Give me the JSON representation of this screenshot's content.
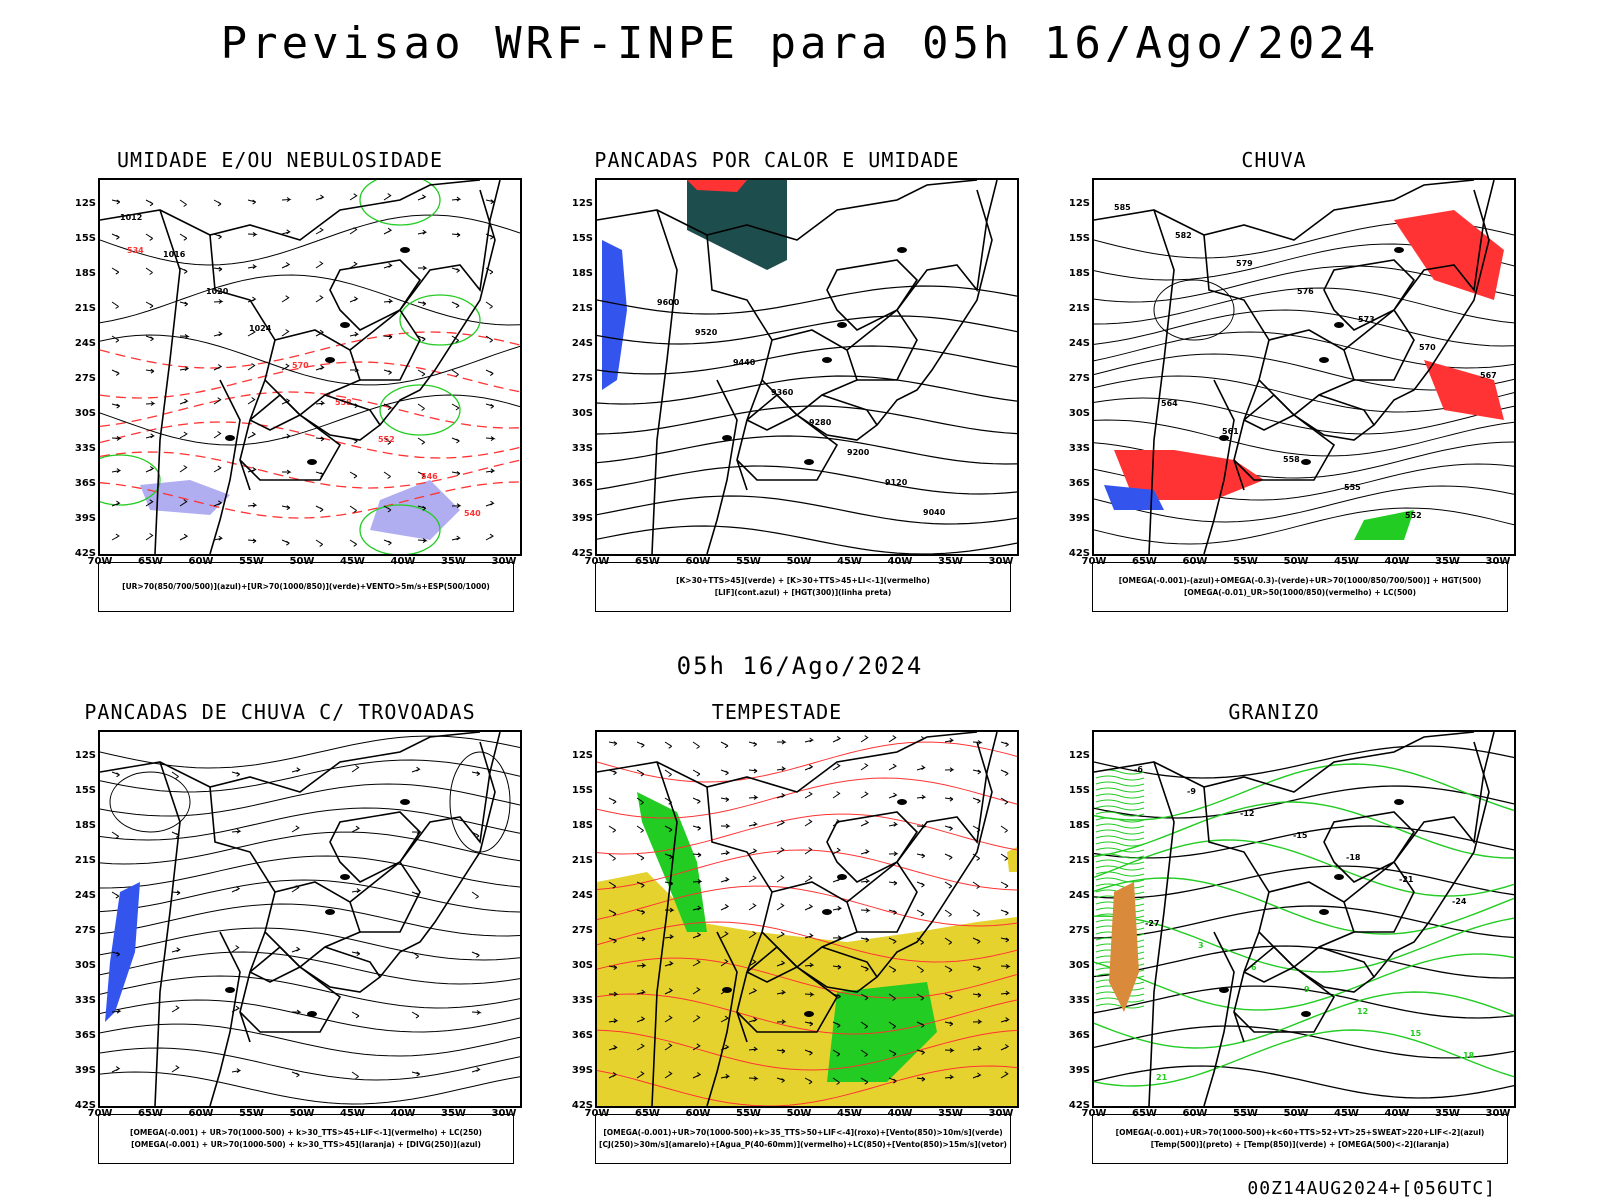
{
  "header": {
    "title": "Previsao WRF-INPE  para 05h 16/Ago/2024"
  },
  "mid_date": "05h 16/Ago/2024",
  "footer": "00Z14AUG2024+[056UTC]",
  "axes": {
    "lat_labels": [
      "12S",
      "15S",
      "18S",
      "21S",
      "24S",
      "27S",
      "30S",
      "33S",
      "36S",
      "39S",
      "42S"
    ],
    "lon_labels": [
      "70W",
      "65W",
      "60W",
      "55W",
      "50W",
      "45W",
      "40W",
      "35W",
      "30W"
    ]
  },
  "colors": {
    "red": "#ff3333",
    "green": "#22cc22",
    "blue": "#3355ee",
    "yellow": "#e6d22e",
    "teal": "#1e4d4d",
    "lavender": "#b0aef0"
  },
  "panels": [
    {
      "title": "UMIDADE E/OU NEBULOSIDADE",
      "legend": [
        "[UR>70(850/700/500)](azul)+[UR>70(1000/850)](verde)+VENTO>5m/s+ESP(500/1000)"
      ],
      "contour_labels": [
        "1012",
        "1016",
        "1020",
        "1024",
        "570",
        "558",
        "552",
        "546",
        "540",
        "534"
      ]
    },
    {
      "title": "PANCADAS POR CALOR E UMIDADE",
      "legend": [
        "[K>30+TTS>45](verde) + [K>30+TTS>45+LI<-1](vermelho)",
        "[LIF](cont.azul) + [HGT(300)](linha preta)"
      ],
      "contour_labels": [
        "9600",
        "9520",
        "9440",
        "9360",
        "9280",
        "9200",
        "9120",
        "9040"
      ]
    },
    {
      "title": "CHUVA",
      "legend": [
        "[OMEGA(-0.001)-(azul)+OMEGA(-0.3)-(verde)+UR>70(1000/850/700/500)] + HGT(500)",
        "[OMEGA(-0.01)_UR>50(1000/850)(vermelho) + LC(500)"
      ],
      "contour_labels": [
        "585",
        "582",
        "579",
        "576",
        "573",
        "570",
        "567",
        "564",
        "561",
        "558",
        "555",
        "552"
      ]
    },
    {
      "title": "PANCADAS DE CHUVA C/ TROVOADAS",
      "legend": [
        "[OMEGA(-0.001) + UR>70(1000-500) + k>30_TTS>45+LIF<-1](vermelho) + LC(250)",
        "[OMEGA(-0.001) + UR>70(1000-500) + k>30_TTS>45](laranja) + [DIVG(250)](azul)"
      ],
      "contour_labels": []
    },
    {
      "title": "TEMPESTADE",
      "legend": [
        "[OMEGA(-0.001)+UR>70(1000-500)+k>35_TTS>50+LIF<-4](roxo)+[Vento(850)>10m/s](verde)",
        "[CJ(250)>30m/s](amarelo)+[Agua_P(40-60mm)](vermelho)+LC(850)+[Vento(850)>15m/s](vetor)"
      ],
      "contour_labels": []
    },
    {
      "title": "GRANIZO",
      "legend": [
        "[OMEGA(-0.001)+UR>70(1000-500)+k<60+TTS>52+VT>25+SWEAT>220+LIF<-2](azul)",
        "[Temp(500)](preto) + [Temp(850)](verde) + [OMEGA(500)<-2](laranja)"
      ],
      "contour_labels": [
        "-6",
        "-9",
        "-12",
        "-15",
        "-18",
        "-21",
        "-24",
        "-27",
        "3",
        "6",
        "9",
        "12",
        "15",
        "18",
        "21"
      ]
    }
  ]
}
